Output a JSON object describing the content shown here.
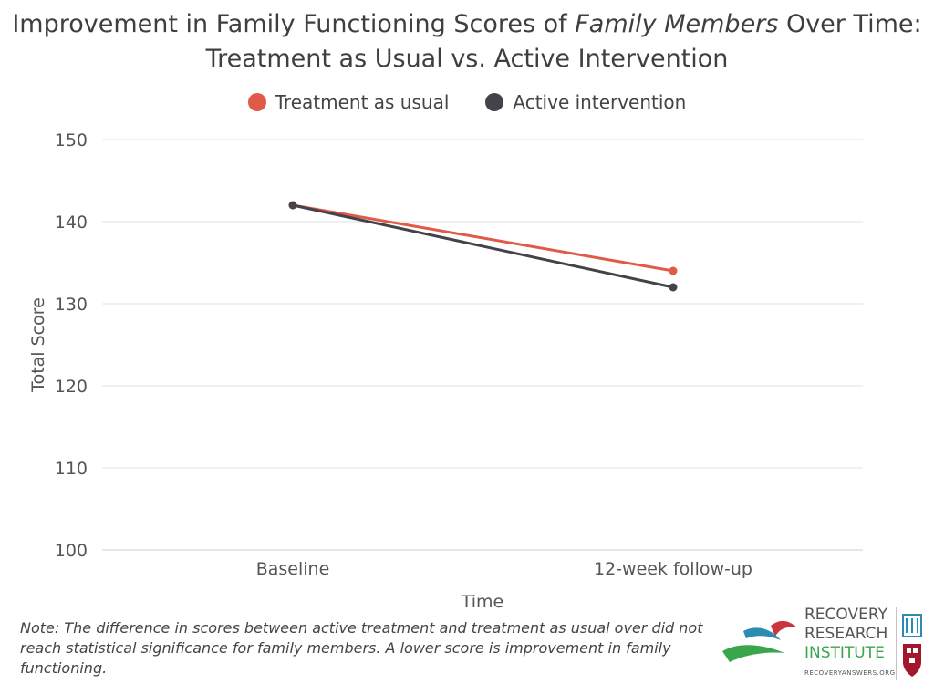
{
  "chart_data": {
    "type": "line",
    "title_prefix": "Improvement in Family Functioning Scores of ",
    "title_italic": "Family Members",
    "title_suffix": " Over Time: Treatment as Usual vs. Active Intervention",
    "xlabel": "Time",
    "ylabel": "Total Score",
    "categories": [
      "Baseline",
      "12-week follow-up"
    ],
    "ylim": [
      100,
      150
    ],
    "yticks": [
      "100",
      "110",
      "120",
      "130",
      "140",
      "150"
    ],
    "grid": true,
    "legend_position": "top-center",
    "series": [
      {
        "name": "Treatment as usual",
        "color": "#e05a47",
        "values": [
          142,
          134
        ]
      },
      {
        "name": "Active intervention",
        "color": "#45434a",
        "values": [
          142,
          132
        ]
      }
    ]
  },
  "note": "Note: The difference in scores between active treatment and treatment as usual over did not reach statistical significance for family members. A lower score is improvement in family functioning.",
  "logo": {
    "line1": "RECOVERY",
    "line2": "RESEARCH",
    "line3": "INSTITUTE",
    "url": "RECOVERYANSWERS.ORG"
  }
}
